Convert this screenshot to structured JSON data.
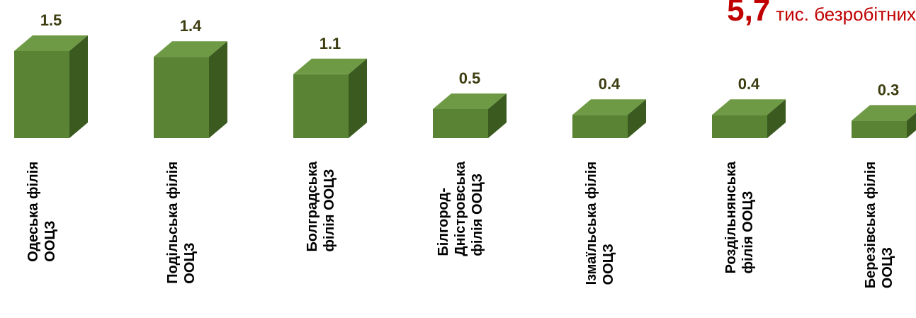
{
  "total": {
    "value": "5,7",
    "unit": "тис. безробітних"
  },
  "colors": {
    "bar_front": "#5a8433",
    "bar_top": "#6f9a45",
    "bar_side": "#3a5a20",
    "value_label": "#3d3d10",
    "total": "#c00000"
  },
  "chart_data": {
    "type": "bar",
    "categories": [
      "Одеська філія ООЦЗ",
      "Подільська філія ООЦЗ",
      "Болградська філія ООЦЗ",
      "Білгород-Дністровська філія ООЦЗ",
      "Ізмаїльська філія ООЦЗ",
      "Роздільнянська філія ООЦЗ",
      "Березівська філія ООЦЗ"
    ],
    "category_lines": [
      [
        "Одеська філія",
        "ООЦЗ"
      ],
      [
        "Подільська філія",
        "ООЦЗ"
      ],
      [
        "Болградська",
        "філія ООЦЗ"
      ],
      [
        "Білгород-",
        "Дністровська",
        "філія ООЦЗ"
      ],
      [
        "Ізмаїльська філія",
        "ООЦЗ"
      ],
      [
        "Роздільнянська",
        "філія ООЦЗ"
      ],
      [
        "Березівська філія",
        "ООЦЗ"
      ]
    ],
    "values": [
      1.5,
      1.4,
      1.1,
      0.5,
      0.4,
      0.4,
      0.3
    ],
    "value_labels": [
      "1.5",
      "1.4",
      "1.1",
      "0.5",
      "0.4",
      "0.4",
      "0.3"
    ],
    "title": "",
    "xlabel": "",
    "ylabel": "",
    "grid": false
  }
}
